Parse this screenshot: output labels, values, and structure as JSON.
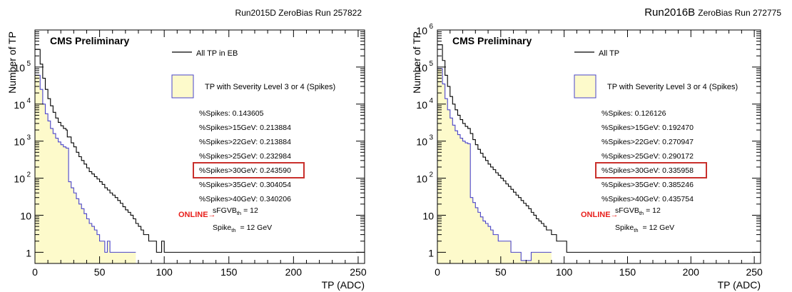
{
  "chart_data": [
    {
      "type": "histogram",
      "run_title": "Run2015D ZeroBias Run 257822",
      "run_title_prefix": "",
      "experiment_label": "CMS Preliminary",
      "xlabel": "TP (ADC)",
      "ylabel": "Number of TP",
      "xlim": [
        0,
        255
      ],
      "ylim": [
        0.5,
        1000000
      ],
      "y_scale": "log",
      "x_ticks": [
        "0",
        "50",
        "100",
        "150",
        "200",
        "250"
      ],
      "y_ticks": [
        {
          "value": 1,
          "label": "1"
        },
        {
          "value": 10,
          "label": "10"
        },
        {
          "value": 100,
          "label": "10",
          "exp": "2"
        },
        {
          "value": 1000,
          "label": "10",
          "exp": "3"
        },
        {
          "value": 10000,
          "label": "10",
          "exp": "4"
        },
        {
          "value": 100000,
          "label": "10",
          "exp": "5"
        }
      ],
      "legend": [
        {
          "label": "All TP in EB",
          "style": "line",
          "color": "#000000"
        },
        {
          "label": "TP with Severity Level 3 or 4 (Spikes)",
          "style": "box",
          "color": "#4a44c9",
          "fill": "#fdfacb"
        }
      ],
      "stats": [
        "%Spikes: 0.143605",
        "%Spikes>15GeV: 0.213884",
        "%Spikes>22GeV: 0.213884",
        "%Spikes>25GeV: 0.232984",
        "%Spikes>30GeV: 0.243590",
        "%Spikes>35GeV: 0.304054",
        "%Spikes>40GeV: 0.340206"
      ],
      "highlighted_stat": 4,
      "online_label": "ONLINE→",
      "sfgvb_main": "sFGVB",
      "sfgvb_sub": "th",
      "sfgvb_value": "= 12",
      "spike_main": "Spike",
      "spike_sub": "th",
      "spike_value": "= 12 GeV",
      "series": [
        {
          "name": "All TP in EB",
          "color": "#000000",
          "points": [
            [
              0,
              300000
            ],
            [
              3,
              300000
            ],
            [
              4,
              120000
            ],
            [
              6,
              50000
            ],
            [
              8,
              25000
            ],
            [
              10,
              14000
            ],
            [
              12,
              9000
            ],
            [
              14,
              6000
            ],
            [
              16,
              4200
            ],
            [
              18,
              3200
            ],
            [
              20,
              2600
            ],
            [
              22,
              2200
            ],
            [
              24,
              2000
            ],
            [
              25,
              1300
            ],
            [
              28,
              900
            ],
            [
              30,
              700
            ],
            [
              32,
              500
            ],
            [
              34,
              380
            ],
            [
              36,
              300
            ],
            [
              38,
              240
            ],
            [
              40,
              190
            ],
            [
              42,
              150
            ],
            [
              44,
              130
            ],
            [
              46,
              110
            ],
            [
              48,
              95
            ],
            [
              50,
              80
            ],
            [
              52,
              68
            ],
            [
              54,
              55
            ],
            [
              56,
              48
            ],
            [
              58,
              40
            ],
            [
              60,
              35
            ],
            [
              62,
              30
            ],
            [
              64,
              25
            ],
            [
              66,
              21
            ],
            [
              68,
              17
            ],
            [
              70,
              14
            ],
            [
              72,
              12
            ],
            [
              74,
              10
            ],
            [
              76,
              8
            ],
            [
              78,
              6
            ],
            [
              80,
              5
            ],
            [
              82,
              4
            ],
            [
              84,
              3
            ],
            [
              86,
              3
            ],
            [
              88,
              2
            ],
            [
              90,
              2
            ],
            [
              92,
              2
            ],
            [
              94,
              1
            ],
            [
              98,
              2
            ],
            [
              100,
              1
            ],
            [
              106,
              1
            ],
            [
              112,
              1
            ],
            [
              126,
              1
            ],
            [
              140,
              1
            ],
            [
              154,
              1
            ],
            [
              164,
              1
            ],
            [
              180,
              1
            ],
            [
              204,
              1
            ],
            [
              218,
              1
            ],
            [
              232,
              1
            ],
            [
              244,
              1
            ],
            [
              255,
              100000
            ]
          ]
        },
        {
          "name": "TP with Severity Level 3 or 4 (Spikes)",
          "color": "#4a44c9",
          "fill": "#fdfacb",
          "points": [
            [
              0,
              60000
            ],
            [
              3,
              60000
            ],
            [
              4,
              25000
            ],
            [
              6,
              10000
            ],
            [
              8,
              5500
            ],
            [
              10,
              3500
            ],
            [
              12,
              2200
            ],
            [
              14,
              1600
            ],
            [
              16,
              1200
            ],
            [
              18,
              950
            ],
            [
              20,
              800
            ],
            [
              22,
              700
            ],
            [
              24,
              650
            ],
            [
              26,
              600
            ],
            [
              26,
              80
            ],
            [
              28,
              55
            ],
            [
              30,
              40
            ],
            [
              32,
              28
            ],
            [
              34,
              20
            ],
            [
              36,
              15
            ],
            [
              38,
              11
            ],
            [
              40,
              8
            ],
            [
              42,
              6
            ],
            [
              44,
              5
            ],
            [
              46,
              4
            ],
            [
              48,
              3
            ],
            [
              50,
              2
            ],
            [
              52,
              2
            ],
            [
              54,
              1
            ],
            [
              56,
              2
            ],
            [
              58,
              1
            ],
            [
              62,
              1
            ],
            [
              66,
              1
            ],
            [
              76,
              1
            ]
          ]
        }
      ]
    },
    {
      "type": "histogram",
      "run_title": "ZeroBias Run 272775",
      "run_title_prefix": "Run2016B",
      "experiment_label": "CMS Preliminary",
      "xlabel": "TP (ADC)",
      "ylabel": "Number of TP",
      "xlim": [
        0,
        255
      ],
      "ylim": [
        0.5,
        1000000
      ],
      "y_scale": "log",
      "x_ticks": [
        "0",
        "50",
        "100",
        "150",
        "200",
        "250"
      ],
      "y_ticks": [
        {
          "value": 1,
          "label": "1"
        },
        {
          "value": 10,
          "label": "10"
        },
        {
          "value": 100,
          "label": "10",
          "exp": "2"
        },
        {
          "value": 1000,
          "label": "10",
          "exp": "3"
        },
        {
          "value": 10000,
          "label": "10",
          "exp": "4"
        },
        {
          "value": 100000,
          "label": "10",
          "exp": "5"
        },
        {
          "value": 1000000,
          "label": "10",
          "exp": "6"
        }
      ],
      "legend": [
        {
          "label": "All TP",
          "style": "line",
          "color": "#000000"
        },
        {
          "label": "TP with Severity Level 3 or 4 (Spikes)",
          "style": "box",
          "color": "#4a44c9",
          "fill": "#fdfacb"
        }
      ],
      "stats": [
        "%Spikes: 0.126126",
        "%Spikes>15GeV: 0.192470",
        "%Spikes>22GeV: 0.270947",
        "%Spikes>25GeV: 0.290172",
        "%Spikes>30GeV: 0.335958",
        "%Spikes>35GeV: 0.385246",
        "%Spikes>40GeV: 0.435754"
      ],
      "highlighted_stat": 4,
      "online_label": "ONLINE→",
      "sfgvb_main": "sFGVB",
      "sfgvb_sub": "th",
      "sfgvb_value": "= 12",
      "spike_main": "Spike",
      "spike_sub": "th",
      "spike_value": "= 12 GeV",
      "series": [
        {
          "name": "All TP",
          "color": "#000000",
          "points": [
            [
              0,
              400000
            ],
            [
              3,
              400000
            ],
            [
              4,
              150000
            ],
            [
              6,
              60000
            ],
            [
              8,
              30000
            ],
            [
              10,
              16000
            ],
            [
              12,
              10000
            ],
            [
              14,
              7000
            ],
            [
              16,
              5000
            ],
            [
              18,
              3800
            ],
            [
              20,
              3000
            ],
            [
              22,
              2500
            ],
            [
              24,
              2200
            ],
            [
              26,
              1600
            ],
            [
              28,
              1100
            ],
            [
              30,
              800
            ],
            [
              32,
              600
            ],
            [
              34,
              470
            ],
            [
              36,
              370
            ],
            [
              38,
              300
            ],
            [
              40,
              240
            ],
            [
              42,
              200
            ],
            [
              44,
              170
            ],
            [
              46,
              140
            ],
            [
              48,
              120
            ],
            [
              50,
              100
            ],
            [
              52,
              85
            ],
            [
              54,
              70
            ],
            [
              56,
              60
            ],
            [
              58,
              50
            ],
            [
              60,
              42
            ],
            [
              62,
              35
            ],
            [
              64,
              30
            ],
            [
              66,
              25
            ],
            [
              68,
              21
            ],
            [
              70,
              18
            ],
            [
              72,
              15
            ],
            [
              74,
              12
            ],
            [
              76,
              10
            ],
            [
              78,
              8
            ],
            [
              80,
              7
            ],
            [
              82,
              6
            ],
            [
              84,
              5
            ],
            [
              86,
              4
            ],
            [
              88,
              4
            ],
            [
              90,
              3
            ],
            [
              92,
              3
            ],
            [
              94,
              2
            ],
            [
              96,
              2
            ],
            [
              98,
              2
            ],
            [
              102,
              1
            ],
            [
              108,
              1
            ],
            [
              116,
              1
            ],
            [
              124,
              1
            ],
            [
              140,
              1
            ],
            [
              160,
              1
            ],
            [
              176,
              1
            ],
            [
              196,
              1
            ],
            [
              214,
              1
            ],
            [
              226,
              1
            ],
            [
              240,
              1
            ],
            [
              250,
              1
            ],
            [
              255,
              20
            ]
          ]
        },
        {
          "name": "TP with Severity Level 3 or 4 (Spikes)",
          "color": "#4a44c9",
          "fill": "#fdfacb",
          "points": [
            [
              0,
              90000
            ],
            [
              3,
              90000
            ],
            [
              4,
              35000
            ],
            [
              6,
              14000
            ],
            [
              8,
              7000
            ],
            [
              10,
              4200
            ],
            [
              12,
              2700
            ],
            [
              14,
              1900
            ],
            [
              16,
              1500
            ],
            [
              18,
              1200
            ],
            [
              20,
              1000
            ],
            [
              22,
              900
            ],
            [
              24,
              850
            ],
            [
              26,
              800
            ],
            [
              26,
              30
            ],
            [
              28,
              22
            ],
            [
              30,
              16
            ],
            [
              32,
              12
            ],
            [
              34,
              9
            ],
            [
              36,
              7
            ],
            [
              38,
              6
            ],
            [
              40,
              5
            ],
            [
              42,
              4
            ],
            [
              44,
              3
            ],
            [
              46,
              3
            ],
            [
              48,
              2
            ],
            [
              50,
              2
            ],
            [
              54,
              2
            ],
            [
              58,
              1
            ],
            [
              62,
              1
            ],
            [
              64,
              1
            ],
            [
              66,
              0.6
            ],
            [
              74,
              1
            ],
            [
              80,
              1
            ],
            [
              88,
              1
            ]
          ]
        }
      ]
    }
  ]
}
